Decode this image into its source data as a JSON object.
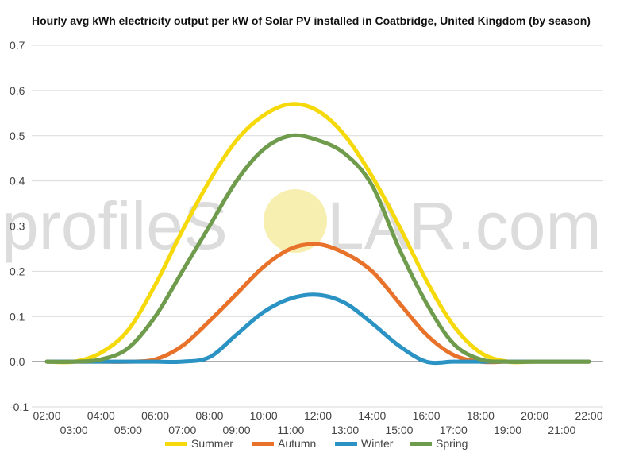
{
  "watermark": {
    "left": "profileS",
    "right": "LAR.com",
    "sun_color": "#f7efb0"
  },
  "chart_data": {
    "type": "line",
    "title": "Hourly avg kWh electricity output per kW of Solar PV installed in Coatbridge, United Kingdom (by season)",
    "xlabel": "",
    "ylabel": "",
    "ylim": [
      -0.1,
      0.7
    ],
    "yticks": [
      -0.1,
      0.0,
      0.1,
      0.2,
      0.3,
      0.4,
      0.5,
      0.6,
      0.7
    ],
    "x": [
      "02:00",
      "03:00",
      "04:00",
      "05:00",
      "06:00",
      "07:00",
      "08:00",
      "09:00",
      "10:00",
      "11:00",
      "12:00",
      "13:00",
      "14:00",
      "15:00",
      "16:00",
      "17:00",
      "18:00",
      "19:00",
      "20:00",
      "21:00",
      "22:00"
    ],
    "grid": true,
    "legend": "bottom",
    "series": [
      {
        "name": "Summer",
        "color": "#f5d90a",
        "values": [
          0,
          0,
          0.02,
          0.07,
          0.17,
          0.29,
          0.4,
          0.49,
          0.545,
          0.57,
          0.555,
          0.5,
          0.41,
          0.3,
          0.18,
          0.08,
          0.02,
          0,
          0,
          0,
          0
        ]
      },
      {
        "name": "Autumn",
        "color": "#e8722a",
        "values": [
          0,
          0,
          0,
          0,
          0.005,
          0.035,
          0.09,
          0.15,
          0.21,
          0.25,
          0.26,
          0.24,
          0.2,
          0.13,
          0.06,
          0.015,
          0,
          0,
          0,
          0,
          0
        ]
      },
      {
        "name": "Winter",
        "color": "#2a93c4",
        "values": [
          0,
          0,
          0,
          0,
          0,
          0,
          0.01,
          0.06,
          0.11,
          0.14,
          0.148,
          0.13,
          0.085,
          0.035,
          0,
          0,
          0,
          0,
          0,
          0,
          0
        ]
      },
      {
        "name": "Spring",
        "color": "#6e9b4c",
        "values": [
          0,
          0,
          0.005,
          0.03,
          0.1,
          0.2,
          0.3,
          0.4,
          0.47,
          0.5,
          0.49,
          0.46,
          0.39,
          0.25,
          0.13,
          0.04,
          0.005,
          0,
          0,
          0,
          0
        ]
      }
    ]
  }
}
